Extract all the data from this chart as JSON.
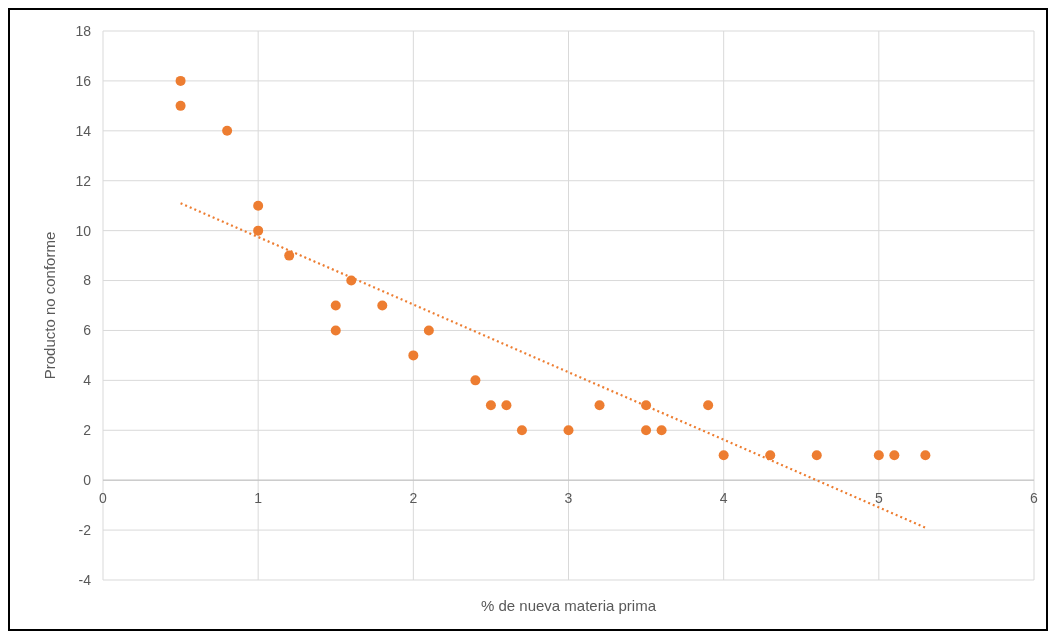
{
  "chart_data": {
    "type": "scatter",
    "xlabel": "% de nueva materia prima",
    "ylabel": "Producto no conforme",
    "xlim": [
      0,
      6
    ],
    "xticks": [
      0,
      1,
      2,
      3,
      4,
      5,
      6
    ],
    "ylim": [
      -4,
      18
    ],
    "yticks": [
      -4,
      -2,
      0,
      2,
      4,
      6,
      8,
      10,
      12,
      14,
      16,
      18
    ],
    "grid": true,
    "series": [
      {
        "color": "#ed7d31",
        "marker": "circle",
        "x": [
          0.5,
          0.5,
          0.8,
          1,
          1,
          1.2,
          1.5,
          1.5,
          1.6,
          1.8,
          2,
          2.1,
          2.4,
          2.5,
          2.6,
          2.7,
          3,
          3.2,
          3.5,
          3.5,
          3.6,
          3.9,
          4,
          4.3,
          4.6,
          5,
          5.1,
          5.3
        ],
        "values": [
          16,
          15,
          14,
          11,
          10,
          9,
          7,
          6,
          8,
          7,
          5,
          6,
          4,
          3,
          3,
          2,
          2,
          3,
          3,
          2,
          2,
          3,
          1,
          1,
          1,
          1,
          1,
          1
        ]
      },
      {
        "type": "line",
        "color": "#ed7d31",
        "marker": "none",
        "line_style": "dotted",
        "x": [
          0.5,
          5.3
        ],
        "values": [
          11.1,
          -1.9
        ]
      }
    ]
  }
}
